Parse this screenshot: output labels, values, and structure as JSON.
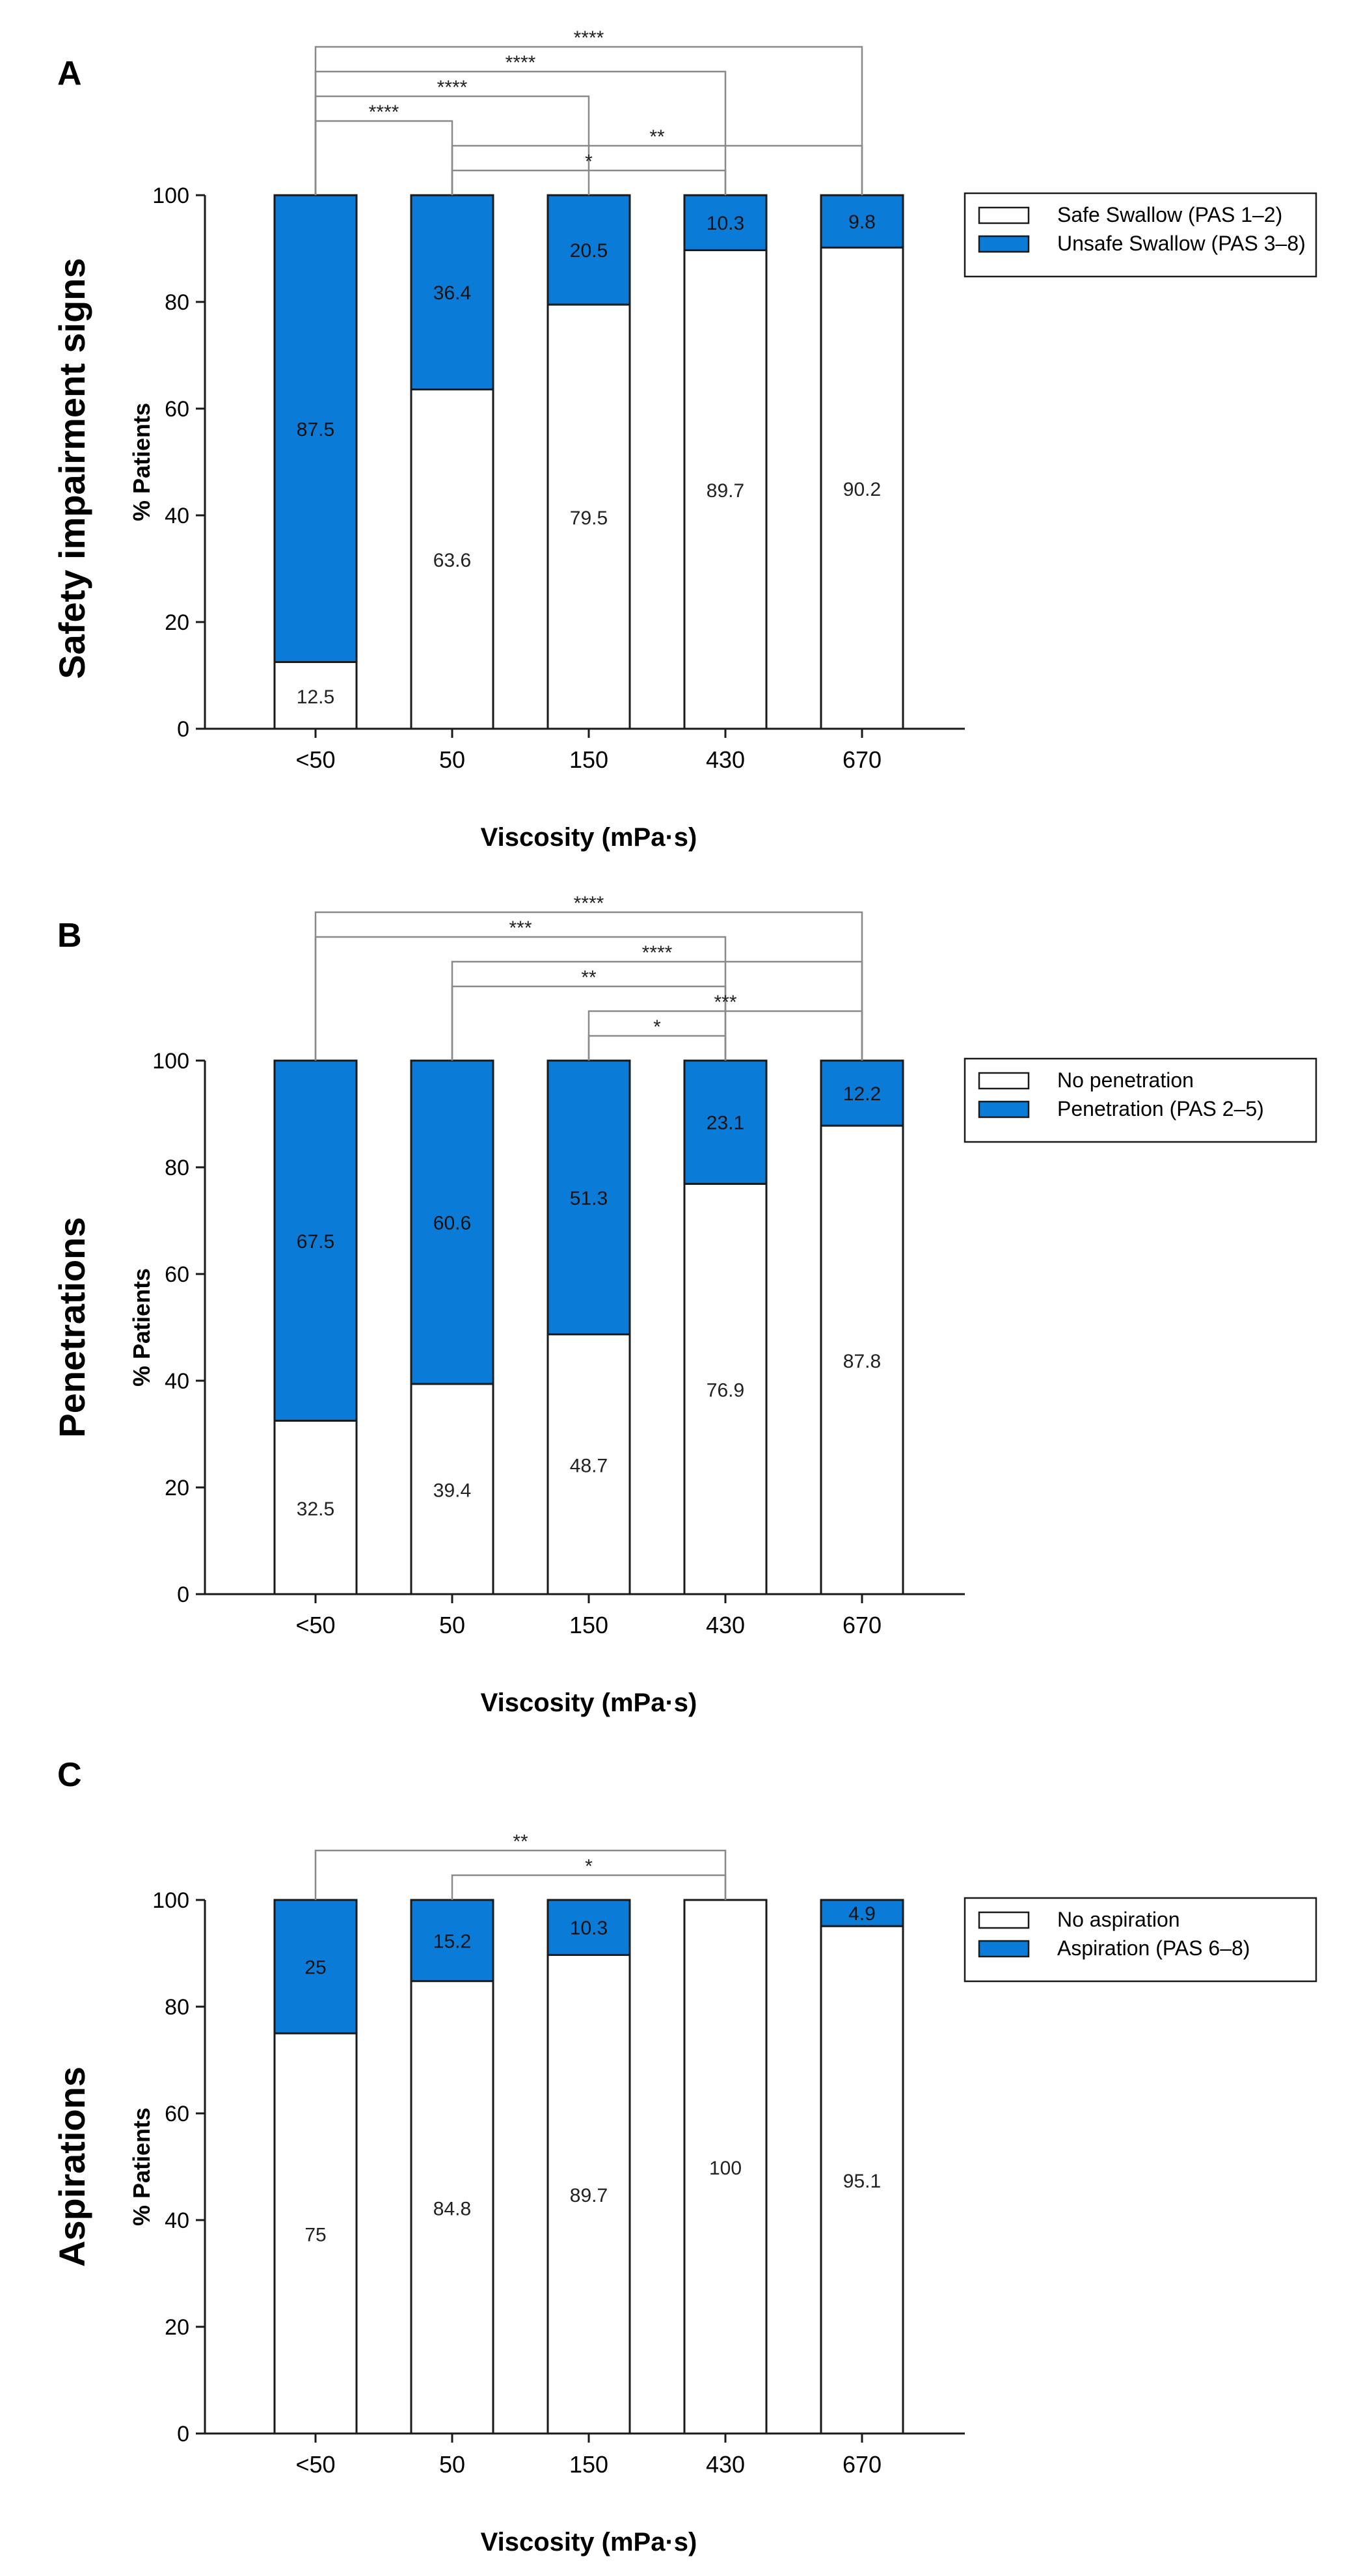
{
  "colors": {
    "unsafe": "#0a7bd6",
    "safe": "#ffffff",
    "stroke": "#1a1a1a",
    "bracket": "#8a8a8a"
  },
  "chart_data": [
    {
      "type": "bar",
      "stacked": true,
      "panel_label": "A",
      "panel_title": "Safety impairment signs",
      "xlabel": "Viscosity (mPa·s)",
      "ylabel": "% Patients",
      "ylim": [
        0,
        100
      ],
      "yticks": [
        0,
        20,
        40,
        60,
        80,
        100
      ],
      "categories": [
        "<50",
        "50",
        "150",
        "430",
        "670"
      ],
      "series": [
        {
          "name": "Safe Swallow (PAS 1–2)",
          "color": "#ffffff",
          "values": [
            12.5,
            63.6,
            79.5,
            89.7,
            90.2
          ],
          "labels": [
            "12.5",
            "63.6",
            "79.5",
            "89.7",
            "90.2"
          ]
        },
        {
          "name": "Unsafe Swallow (PAS 3–8)",
          "color": "#0a7bd6",
          "values": [
            87.5,
            36.4,
            20.5,
            10.3,
            9.8
          ],
          "labels": [
            "87.5",
            "36.4",
            "20.5",
            "10.3",
            "9.8"
          ]
        }
      ],
      "legend_position": "top-right",
      "significance": [
        {
          "from": 0,
          "to": 4,
          "label": "****"
        },
        {
          "from": 0,
          "to": 3,
          "label": "****"
        },
        {
          "from": 0,
          "to": 2,
          "label": "****"
        },
        {
          "from": 0,
          "to": 1,
          "label": "****"
        },
        {
          "from": 1,
          "to": 4,
          "label": "**"
        },
        {
          "from": 1,
          "to": 3,
          "label": "*"
        }
      ]
    },
    {
      "type": "bar",
      "stacked": true,
      "panel_label": "B",
      "panel_title": "Penetrations",
      "xlabel": "Viscosity (mPa·s)",
      "ylabel": "% Patients",
      "ylim": [
        0,
        100
      ],
      "yticks": [
        0,
        20,
        40,
        60,
        80,
        100
      ],
      "categories": [
        "<50",
        "50",
        "150",
        "430",
        "670"
      ],
      "series": [
        {
          "name": "No penetration",
          "color": "#ffffff",
          "values": [
            32.5,
            39.4,
            48.7,
            76.9,
            87.8
          ],
          "labels": [
            "32.5",
            "39.4",
            "48.7",
            "76.9",
            "87.8"
          ]
        },
        {
          "name": "Penetration (PAS 2–5)",
          "color": "#0a7bd6",
          "values": [
            67.5,
            60.6,
            51.3,
            23.1,
            12.2
          ],
          "labels": [
            "67.5",
            "60.6",
            "51.3",
            "23.1",
            "12.2"
          ]
        }
      ],
      "legend_position": "top-right",
      "significance": [
        {
          "from": 0,
          "to": 4,
          "label": "****"
        },
        {
          "from": 0,
          "to": 3,
          "label": "***"
        },
        {
          "from": 1,
          "to": 4,
          "label": "****"
        },
        {
          "from": 1,
          "to": 3,
          "label": "**"
        },
        {
          "from": 2,
          "to": 4,
          "label": "***"
        },
        {
          "from": 2,
          "to": 3,
          "label": "*"
        }
      ]
    },
    {
      "type": "bar",
      "stacked": true,
      "panel_label": "C",
      "panel_title": "Aspirations",
      "xlabel": "Viscosity (mPa·s)",
      "ylabel": "% Patients",
      "ylim": [
        0,
        100
      ],
      "yticks": [
        0,
        20,
        40,
        60,
        80,
        100
      ],
      "categories": [
        "<50",
        "50",
        "150",
        "430",
        "670"
      ],
      "series": [
        {
          "name": "No aspiration",
          "color": "#ffffff",
          "values": [
            75,
            84.8,
            89.7,
            100,
            95.1
          ],
          "labels": [
            "75",
            "84.8",
            "89.7",
            "100",
            "95.1"
          ]
        },
        {
          "name": "Aspiration (PAS 6–8)",
          "color": "#0a7bd6",
          "values": [
            25,
            15.2,
            10.3,
            0,
            4.9
          ],
          "labels": [
            "25",
            "15.2",
            "10.3",
            "",
            "4.9"
          ]
        }
      ],
      "legend_position": "top-right",
      "significance": [
        {
          "from": 0,
          "to": 3,
          "label": "**"
        },
        {
          "from": 1,
          "to": 3,
          "label": "*"
        }
      ]
    }
  ]
}
